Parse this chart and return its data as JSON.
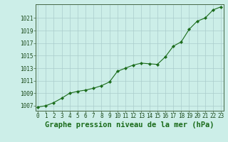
{
  "x": [
    0,
    1,
    2,
    3,
    4,
    5,
    6,
    7,
    8,
    9,
    10,
    11,
    12,
    13,
    14,
    15,
    16,
    17,
    18,
    19,
    20,
    21,
    22,
    23
  ],
  "y": [
    1006.8,
    1007.0,
    1007.5,
    1008.2,
    1009.0,
    1009.3,
    1009.5,
    1009.8,
    1010.2,
    1010.8,
    1012.5,
    1013.0,
    1013.5,
    1013.8,
    1013.7,
    1013.6,
    1014.8,
    1016.5,
    1017.2,
    1019.2,
    1020.5,
    1021.0,
    1022.3,
    1022.8
  ],
  "line_color": "#1a6b1a",
  "marker": "D",
  "marker_size": 2.2,
  "bg_color": "#cceee8",
  "grid_color": "#aacccc",
  "title": "Graphe pression niveau de la mer (hPa)",
  "yticks": [
    1007,
    1009,
    1011,
    1013,
    1015,
    1017,
    1019,
    1021
  ],
  "xticks": [
    0,
    1,
    2,
    3,
    4,
    5,
    6,
    7,
    8,
    9,
    10,
    11,
    12,
    13,
    14,
    15,
    16,
    17,
    18,
    19,
    20,
    21,
    22,
    23
  ],
  "ylim": [
    1006.2,
    1023.2
  ],
  "xlim": [
    -0.3,
    23.3
  ],
  "tick_fontsize": 5.5,
  "title_fontsize": 7.5,
  "spine_color": "#446644"
}
